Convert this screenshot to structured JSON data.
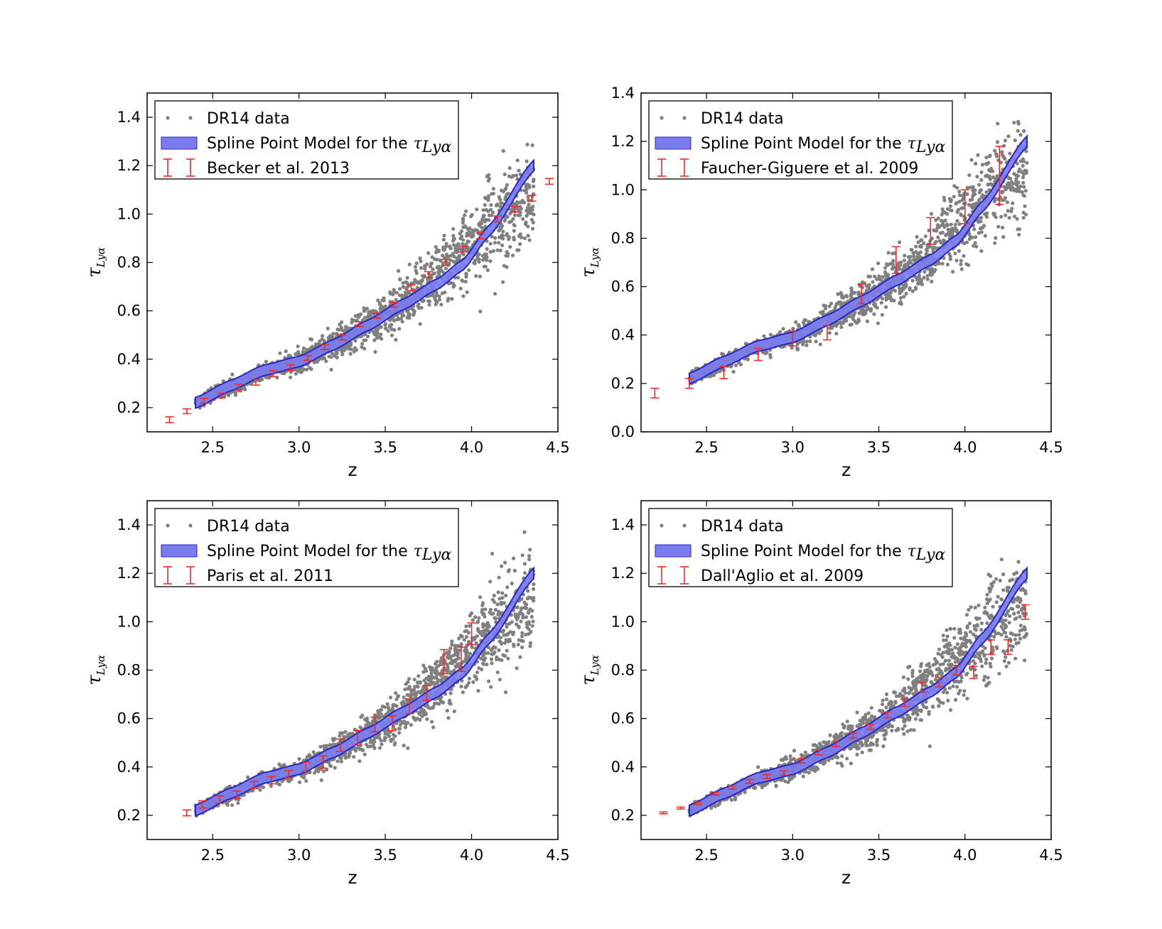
{
  "figure": {
    "background": "#ffffff"
  },
  "colors": {
    "scatter": "#808080",
    "band_fill": "#7b7bf0",
    "band_edge": "#2828c8",
    "errorbar": "#ee2a2a"
  },
  "chart_data": [
    {
      "type": "scatter",
      "panel": "top-left",
      "xlabel": "z",
      "ylabel": "τ_Lyα",
      "ylabel_main": "τ",
      "ylabel_sub": "Lyα",
      "xlim": [
        2.12,
        4.5
      ],
      "ylim": [
        0.1,
        1.5
      ],
      "xticks": [
        2.5,
        3.0,
        3.5,
        4.0,
        4.5
      ],
      "xtick_labels": [
        "2.5",
        "3.0",
        "3.5",
        "4.0",
        "4.5"
      ],
      "yticks": [
        0.2,
        0.4,
        0.6,
        0.8,
        1.0,
        1.2,
        1.4
      ],
      "ytick_labels": [
        "0.2",
        "0.4",
        "0.6",
        "0.8",
        "1.0",
        "1.2",
        "1.4"
      ],
      "legend": {
        "loc": "upper-left",
        "entries": [
          "DR14 data",
          "Spline Point Model for the",
          "Becker et al. 2013"
        ],
        "math_suffix": "τ",
        "math_sub": "Lyα"
      },
      "errorbars": [
        {
          "x": 2.25,
          "y": 0.15,
          "err": 0.012
        },
        {
          "x": 2.35,
          "y": 0.185,
          "err": 0.01
        },
        {
          "x": 2.45,
          "y": 0.228,
          "err": 0.01
        },
        {
          "x": 2.55,
          "y": 0.25,
          "err": 0.01
        },
        {
          "x": 2.65,
          "y": 0.285,
          "err": 0.012
        },
        {
          "x": 2.75,
          "y": 0.305,
          "err": 0.012
        },
        {
          "x": 2.85,
          "y": 0.34,
          "err": 0.012
        },
        {
          "x": 2.95,
          "y": 0.365,
          "err": 0.012
        },
        {
          "x": 3.05,
          "y": 0.405,
          "err": 0.01
        },
        {
          "x": 3.15,
          "y": 0.45,
          "err": 0.01
        },
        {
          "x": 3.25,
          "y": 0.49,
          "err": 0.01
        },
        {
          "x": 3.35,
          "y": 0.545,
          "err": 0.01
        },
        {
          "x": 3.45,
          "y": 0.58,
          "err": 0.01
        },
        {
          "x": 3.55,
          "y": 0.625,
          "err": 0.01
        },
        {
          "x": 3.65,
          "y": 0.695,
          "err": 0.012
        },
        {
          "x": 3.75,
          "y": 0.75,
          "err": 0.012
        },
        {
          "x": 3.85,
          "y": 0.8,
          "err": 0.012
        },
        {
          "x": 3.95,
          "y": 0.855,
          "err": 0.012
        },
        {
          "x": 4.05,
          "y": 0.91,
          "err": 0.012
        },
        {
          "x": 4.15,
          "y": 0.98,
          "err": 0.012
        },
        {
          "x": 4.25,
          "y": 1.02,
          "err": 0.012
        },
        {
          "x": 4.35,
          "y": 1.065,
          "err": 0.012
        },
        {
          "x": 4.45,
          "y": 1.135,
          "err": 0.012
        }
      ]
    },
    {
      "type": "scatter",
      "panel": "top-right",
      "xlabel": "z",
      "ylabel": "τ_Lyα",
      "ylabel_main": "τ",
      "ylabel_sub": "Lyα",
      "xlim": [
        2.12,
        4.5
      ],
      "ylim": [
        0.0,
        1.4
      ],
      "xticks": [
        2.5,
        3.0,
        3.5,
        4.0,
        4.5
      ],
      "xtick_labels": [
        "2.5",
        "3.0",
        "3.5",
        "4.0",
        "4.5"
      ],
      "yticks": [
        0.0,
        0.2,
        0.4,
        0.6,
        0.8,
        1.0,
        1.2,
        1.4
      ],
      "ytick_labels": [
        "0.0",
        "0.2",
        "0.4",
        "0.6",
        "0.8",
        "1.0",
        "1.2",
        "1.4"
      ],
      "legend": {
        "loc": "upper-left",
        "entries": [
          "DR14 data",
          "Spline Point Model for the",
          "Faucher-Giguere et al. 2009"
        ],
        "math_suffix": "τ",
        "math_sub": "Lyα"
      },
      "errorbars": [
        {
          "x": 2.2,
          "y": 0.16,
          "err": 0.02
        },
        {
          "x": 2.4,
          "y": 0.2,
          "err": 0.02
        },
        {
          "x": 2.6,
          "y": 0.245,
          "err": 0.025
        },
        {
          "x": 2.8,
          "y": 0.32,
          "err": 0.025
        },
        {
          "x": 3.0,
          "y": 0.385,
          "err": 0.03
        },
        {
          "x": 3.2,
          "y": 0.41,
          "err": 0.03
        },
        {
          "x": 3.4,
          "y": 0.57,
          "err": 0.04
        },
        {
          "x": 3.6,
          "y": 0.71,
          "err": 0.055
        },
        {
          "x": 3.8,
          "y": 0.83,
          "err": 0.055
        },
        {
          "x": 4.0,
          "y": 0.93,
          "err": 0.07
        },
        {
          "x": 4.2,
          "y": 1.06,
          "err": 0.12
        }
      ]
    },
    {
      "type": "scatter",
      "panel": "bottom-left",
      "xlabel": "z",
      "ylabel": "τ_Lyα",
      "ylabel_main": "τ",
      "ylabel_sub": "Lyα",
      "xlim": [
        2.12,
        4.5
      ],
      "ylim": [
        0.1,
        1.5
      ],
      "xticks": [
        2.5,
        3.0,
        3.5,
        4.0,
        4.5
      ],
      "xtick_labels": [
        "2.5",
        "3.0",
        "3.5",
        "4.0",
        "4.5"
      ],
      "yticks": [
        0.2,
        0.4,
        0.6,
        0.8,
        1.0,
        1.2,
        1.4
      ],
      "ytick_labels": [
        "0.2",
        "0.4",
        "0.6",
        "0.8",
        "1.0",
        "1.2",
        "1.4"
      ],
      "legend": {
        "loc": "upper-left",
        "entries": [
          "DR14 data",
          "Spline Point Model for the",
          "Paris et al. 2011"
        ],
        "math_suffix": "τ",
        "math_sub": "Lyα"
      },
      "errorbars": [
        {
          "x": 2.35,
          "y": 0.21,
          "err": 0.012
        },
        {
          "x": 2.44,
          "y": 0.245,
          "err": 0.015
        },
        {
          "x": 2.54,
          "y": 0.265,
          "err": 0.015
        },
        {
          "x": 2.64,
          "y": 0.285,
          "err": 0.015
        },
        {
          "x": 2.74,
          "y": 0.325,
          "err": 0.015
        },
        {
          "x": 2.84,
          "y": 0.345,
          "err": 0.015
        },
        {
          "x": 2.94,
          "y": 0.37,
          "err": 0.015
        },
        {
          "x": 3.04,
          "y": 0.4,
          "err": 0.02
        },
        {
          "x": 3.14,
          "y": 0.42,
          "err": 0.025
        },
        {
          "x": 3.24,
          "y": 0.49,
          "err": 0.025
        },
        {
          "x": 3.34,
          "y": 0.52,
          "err": 0.03
        },
        {
          "x": 3.44,
          "y": 0.575,
          "err": 0.03
        },
        {
          "x": 3.54,
          "y": 0.58,
          "err": 0.03
        },
        {
          "x": 3.64,
          "y": 0.65,
          "err": 0.03
        },
        {
          "x": 3.74,
          "y": 0.705,
          "err": 0.03
        },
        {
          "x": 3.84,
          "y": 0.835,
          "err": 0.05
        },
        {
          "x": 3.94,
          "y": 0.845,
          "err": 0.05
        },
        {
          "x": 4.0,
          "y": 0.95,
          "err": 0.045
        }
      ]
    },
    {
      "type": "scatter",
      "panel": "bottom-right",
      "xlabel": "z",
      "ylabel": "τ_Lyα",
      "ylabel_main": "τ",
      "ylabel_sub": "Lyα",
      "xlim": [
        2.12,
        4.5
      ],
      "ylim": [
        0.1,
        1.5
      ],
      "xticks": [
        2.5,
        3.0,
        3.5,
        4.0,
        4.5
      ],
      "xtick_labels": [
        "2.5",
        "3.0",
        "3.5",
        "4.0",
        "4.5"
      ],
      "yticks": [
        0.2,
        0.4,
        0.6,
        0.8,
        1.0,
        1.2,
        1.4
      ],
      "ytick_labels": [
        "0.2",
        "0.4",
        "0.6",
        "0.8",
        "1.0",
        "1.2",
        "1.4"
      ],
      "legend": {
        "loc": "upper-left",
        "entries": [
          "DR14 data",
          "Spline Point Model for the",
          "Dall'Aglio et al. 2009"
        ],
        "math_suffix": "τ",
        "math_sub": "Lyα"
      },
      "errorbars": [
        {
          "x": 2.25,
          "y": 0.21,
          "err": 0.004
        },
        {
          "x": 2.35,
          "y": 0.23,
          "err": 0.004
        },
        {
          "x": 2.45,
          "y": 0.25,
          "err": 0.005
        },
        {
          "x": 2.55,
          "y": 0.29,
          "err": 0.006
        },
        {
          "x": 2.65,
          "y": 0.315,
          "err": 0.007
        },
        {
          "x": 2.75,
          "y": 0.34,
          "err": 0.008
        },
        {
          "x": 2.85,
          "y": 0.36,
          "err": 0.008
        },
        {
          "x": 2.95,
          "y": 0.375,
          "err": 0.009
        },
        {
          "x": 3.05,
          "y": 0.425,
          "err": 0.009
        },
        {
          "x": 3.15,
          "y": 0.46,
          "err": 0.01
        },
        {
          "x": 3.25,
          "y": 0.495,
          "err": 0.01
        },
        {
          "x": 3.35,
          "y": 0.53,
          "err": 0.01
        },
        {
          "x": 3.45,
          "y": 0.565,
          "err": 0.01
        },
        {
          "x": 3.55,
          "y": 0.615,
          "err": 0.012
        },
        {
          "x": 3.65,
          "y": 0.665,
          "err": 0.015
        },
        {
          "x": 3.75,
          "y": 0.73,
          "err": 0.02
        },
        {
          "x": 3.85,
          "y": 0.75,
          "err": 0.02
        },
        {
          "x": 3.95,
          "y": 0.8,
          "err": 0.02
        },
        {
          "x": 4.05,
          "y": 0.79,
          "err": 0.025
        },
        {
          "x": 4.15,
          "y": 0.895,
          "err": 0.03
        },
        {
          "x": 4.25,
          "y": 0.895,
          "err": 0.03
        },
        {
          "x": 4.35,
          "y": 1.04,
          "err": 0.03
        }
      ]
    }
  ],
  "model": {
    "knots": [
      {
        "z": 2.4,
        "tau": 0.22
      },
      {
        "z": 2.6,
        "tau": 0.29
      },
      {
        "z": 2.8,
        "tau": 0.355
      },
      {
        "z": 3.0,
        "tau": 0.39
      },
      {
        "z": 3.2,
        "tau": 0.46
      },
      {
        "z": 3.4,
        "tau": 0.54
      },
      {
        "z": 3.6,
        "tau": 0.625
      },
      {
        "z": 3.8,
        "tau": 0.71
      },
      {
        "z": 3.95,
        "tau": 0.79
      },
      {
        "z": 4.1,
        "tau": 0.93
      },
      {
        "z": 4.36,
        "tau": 1.2
      }
    ],
    "band_halfwidth": 0.022
  },
  "scatter_trend": {
    "z_range": [
      2.4,
      4.36
    ],
    "n_points": 1700,
    "knots": [
      {
        "z": 2.4,
        "tau": 0.22,
        "spread": 0.012
      },
      {
        "z": 2.6,
        "tau": 0.285,
        "spread": 0.015
      },
      {
        "z": 2.8,
        "tau": 0.35,
        "spread": 0.015
      },
      {
        "z": 3.0,
        "tau": 0.39,
        "spread": 0.022
      },
      {
        "z": 3.2,
        "tau": 0.46,
        "spread": 0.03
      },
      {
        "z": 3.4,
        "tau": 0.535,
        "spread": 0.04
      },
      {
        "z": 3.6,
        "tau": 0.63,
        "spread": 0.05
      },
      {
        "z": 3.8,
        "tau": 0.74,
        "spread": 0.06
      },
      {
        "z": 4.0,
        "tau": 0.88,
        "spread": 0.085
      },
      {
        "z": 4.2,
        "tau": 1.0,
        "spread": 0.1
      },
      {
        "z": 4.36,
        "tau": 1.1,
        "spread": 0.1
      }
    ]
  }
}
